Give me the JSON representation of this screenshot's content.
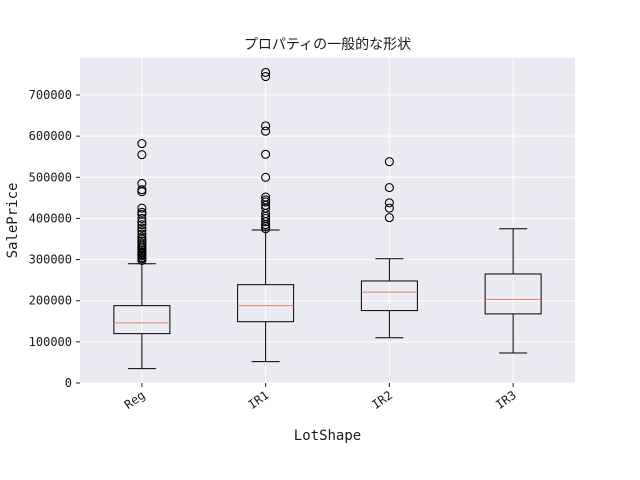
{
  "chart_data": {
    "type": "box",
    "title": "プロパティの一般的な形状",
    "xlabel": "LotShape",
    "ylabel": "SalePrice",
    "ylim": [
      0,
      790000
    ],
    "yticks": [
      0,
      100000,
      200000,
      300000,
      400000,
      500000,
      600000,
      700000
    ],
    "ytick_labels": [
      "0",
      "100000",
      "200000",
      "300000",
      "400000",
      "500000",
      "600000",
      "700000"
    ],
    "grid": true,
    "colors": {
      "plot_background": "#eaeaf2",
      "grid": "#ffffff",
      "box": "#000000",
      "median": "#e8825f"
    },
    "categories": [
      "Reg",
      "IR1",
      "IR2",
      "IR3"
    ],
    "boxes": [
      {
        "label": "Reg",
        "whisker_low": 34900,
        "q1": 120000,
        "median": 146000,
        "q3": 188000,
        "whisker_high": 290000,
        "outliers": [
          298000,
          302000,
          305000,
          309000,
          312000,
          315000,
          318000,
          322000,
          326000,
          330000,
          335000,
          340000,
          345000,
          350000,
          355000,
          362000,
          370000,
          377000,
          385000,
          392000,
          400000,
          410000,
          415000,
          425000,
          465000,
          470000,
          485000,
          555000,
          582000
        ]
      },
      {
        "label": "IR1",
        "whisker_low": 52000,
        "q1": 149000,
        "median": 188000,
        "q3": 239000,
        "whisker_high": 372000,
        "outliers": [
          375000,
          380000,
          385000,
          392000,
          400000,
          405000,
          412000,
          425000,
          432000,
          440000,
          445000,
          452000,
          500000,
          556000,
          612000,
          625000,
          745000,
          755000
        ]
      },
      {
        "label": "IR2",
        "whisker_low": 110000,
        "q1": 176000,
        "median": 221000,
        "q3": 248000,
        "whisker_high": 302000,
        "outliers": [
          402000,
          425000,
          438000,
          475000,
          538000
        ]
      },
      {
        "label": "IR3",
        "whisker_low": 73000,
        "q1": 168000,
        "median": 203000,
        "q3": 265000,
        "whisker_high": 375000,
        "outliers": []
      }
    ]
  }
}
